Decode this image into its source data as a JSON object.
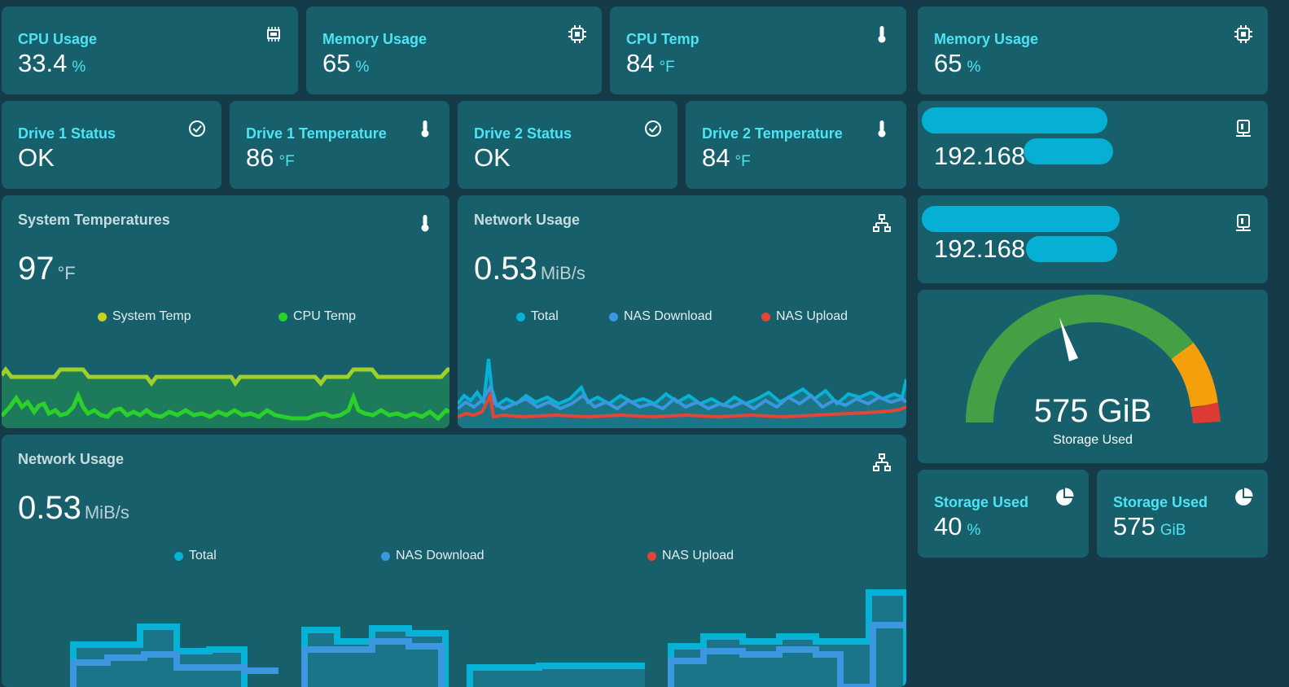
{
  "tiles_top": [
    {
      "title": "CPU Usage",
      "value": "33.4",
      "unit": "%",
      "icon": "cpu-chip-icon"
    },
    {
      "title": "Memory Usage",
      "value": "65",
      "unit": "%",
      "icon": "memory-icon"
    },
    {
      "title": "CPU Temp",
      "value": "84",
      "unit": "°F",
      "icon": "thermometer-icon"
    }
  ],
  "memory_right": {
    "title": "Memory Usage",
    "value": "65",
    "unit": "%",
    "icon": "memory-icon"
  },
  "tiles_drives": [
    {
      "title": "Drive 1 Status",
      "value": "OK",
      "unit": "",
      "icon": "check-circle-icon"
    },
    {
      "title": "Drive 1 Temperature",
      "value": "86",
      "unit": "°F",
      "icon": "thermometer-icon"
    },
    {
      "title": "Drive 2 Status",
      "value": "OK",
      "unit": "",
      "icon": "check-circle-icon"
    },
    {
      "title": "Drive 2 Temperature",
      "value": "84",
      "unit": "°F",
      "icon": "thermometer-icon"
    }
  ],
  "ip_cards": [
    {
      "ip_visible": "192.168",
      "icon": "network-interface-icon"
    },
    {
      "ip_visible": "192.168",
      "icon": "network-interface-icon"
    }
  ],
  "system_temps": {
    "title": "System Temperatures",
    "value": "97",
    "unit": "°F",
    "legend": [
      {
        "name": "System Temp",
        "color": "#c5d320"
      },
      {
        "name": "CPU Temp",
        "color": "#2ad12a"
      }
    ]
  },
  "network_small": {
    "title": "Network Usage",
    "value": "0.53",
    "unit": "MiB/s",
    "legend": [
      {
        "name": "Total",
        "color": "#06b3d6"
      },
      {
        "name": "NAS Download",
        "color": "#3a97e0"
      },
      {
        "name": "NAS Upload",
        "color": "#e54436"
      }
    ]
  },
  "network_large": {
    "title": "Network Usage",
    "value": "0.53",
    "unit": "MiB/s",
    "legend": [
      {
        "name": "Total",
        "color": "#06b3d6"
      },
      {
        "name": "NAS Download",
        "color": "#3a97e0"
      },
      {
        "name": "NAS Upload",
        "color": "#e54436"
      }
    ]
  },
  "storage_gauge": {
    "value": "575 GiB",
    "label": "Storage Used",
    "level_fraction": 0.4
  },
  "storage_tiles": [
    {
      "title": "Storage Used",
      "value": "40",
      "unit": "%",
      "icon": "pie-chart-icon"
    },
    {
      "title": "Storage Used",
      "value": "575",
      "unit": "GiB",
      "icon": "pie-chart-icon"
    }
  ],
  "colors": {
    "background": "#143b47",
    "card": "#17606b",
    "accent": "#4ee3f3"
  }
}
